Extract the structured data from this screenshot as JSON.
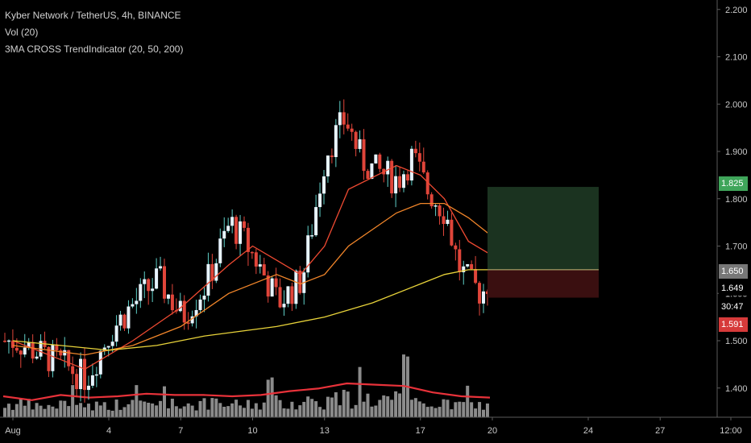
{
  "legend": {
    "symbol": "Kyber Network / TetherUS, 4h, BINANCE",
    "volume": "Vol (20)",
    "indicator": "3MA CROSS TrendIndicator (20, 50, 200)"
  },
  "colors": {
    "up": "#e8f4ff",
    "down": "#e0453a",
    "wick_up": "#5fd0c8",
    "ma20": "#ef4a32",
    "ma50": "#f2862a",
    "ma200": "#e8d33a",
    "volume_bar": "#9a9a9a",
    "volume_ma": "#e8323a",
    "profit_zone": "#1b3320",
    "loss_zone": "#3a0f10",
    "axis_text": "#c8c8c8"
  },
  "price_axis": {
    "ticks": [
      "2.200",
      "2.100",
      "2.000",
      "1.900",
      "1.800",
      "1.700",
      "1.600",
      "1.500",
      "1.400"
    ],
    "badges": {
      "target": "1.825",
      "entry": "1.650",
      "last_price": "1.649",
      "countdown": "30:47",
      "stop": "1.591"
    }
  },
  "time_axis": {
    "labels": [
      "Aug",
      "4",
      "7",
      "10",
      "13",
      "17",
      "20",
      "24",
      "27",
      "12:00"
    ]
  },
  "chart_data": {
    "type": "candlestick",
    "title": "Kyber Network / TetherUS, 4h, BINANCE",
    "ylim": [
      1.34,
      2.22
    ],
    "x_categories": [
      "Aug",
      "4",
      "7",
      "10",
      "13",
      "17",
      "20",
      "24",
      "27",
      "12:00"
    ],
    "series_price_anchors": [
      {
        "day": 0,
        "close": 1.5
      },
      {
        "day": 2,
        "close": 1.45
      },
      {
        "day": 3,
        "close": 1.42
      },
      {
        "day": 4,
        "close": 1.52
      },
      {
        "day": 5,
        "close": 1.58
      },
      {
        "day": 6,
        "close": 1.63
      },
      {
        "day": 7,
        "close": 1.55
      },
      {
        "day": 8,
        "close": 1.62
      },
      {
        "day": 9,
        "close": 1.75
      },
      {
        "day": 9.6,
        "close": 1.71
      },
      {
        "day": 10.2,
        "close": 1.66
      },
      {
        "day": 11,
        "close": 1.58
      },
      {
        "day": 12,
        "close": 1.63
      },
      {
        "day": 13,
        "close": 1.9
      },
      {
        "day": 13.8,
        "close": 1.97
      },
      {
        "day": 14.5,
        "close": 1.88
      },
      {
        "day": 15,
        "close": 1.86
      },
      {
        "day": 16,
        "close": 1.84
      },
      {
        "day": 16.6,
        "close": 1.89
      },
      {
        "day": 17.2,
        "close": 1.82
      },
      {
        "day": 18,
        "close": 1.77
      },
      {
        "day": 18.5,
        "close": 1.66
      },
      {
        "day": 19,
        "close": 1.62
      },
      {
        "day": 19.5,
        "close": 1.6
      },
      {
        "day": 20,
        "close": 1.649
      }
    ],
    "moving_averages": [
      {
        "name": "MA 20",
        "color": "#ef4a32",
        "points": [
          [
            0,
            1.5
          ],
          [
            3,
            1.44
          ],
          [
            5,
            1.5
          ],
          [
            7,
            1.57
          ],
          [
            9,
            1.66
          ],
          [
            10,
            1.7
          ],
          [
            11,
            1.67
          ],
          [
            12,
            1.64
          ],
          [
            13,
            1.7
          ],
          [
            14,
            1.82
          ],
          [
            16,
            1.87
          ],
          [
            17,
            1.85
          ],
          [
            18,
            1.8
          ],
          [
            19,
            1.71
          ],
          [
            20,
            1.68
          ]
        ]
      },
      {
        "name": "MA 50",
        "color": "#f2862a",
        "points": [
          [
            0,
            1.49
          ],
          [
            3,
            1.47
          ],
          [
            5,
            1.49
          ],
          [
            7,
            1.53
          ],
          [
            9,
            1.6
          ],
          [
            11,
            1.64
          ],
          [
            12,
            1.62
          ],
          [
            13,
            1.64
          ],
          [
            14,
            1.7
          ],
          [
            16,
            1.77
          ],
          [
            17,
            1.79
          ],
          [
            18,
            1.79
          ],
          [
            19,
            1.76
          ],
          [
            20,
            1.72
          ]
        ]
      },
      {
        "name": "MA 200",
        "color": "#e8d33a",
        "points": [
          [
            0,
            1.5
          ],
          [
            4,
            1.48
          ],
          [
            6,
            1.49
          ],
          [
            8,
            1.51
          ],
          [
            11,
            1.53
          ],
          [
            13,
            1.55
          ],
          [
            15,
            1.58
          ],
          [
            17,
            1.62
          ],
          [
            18,
            1.64
          ],
          [
            19,
            1.65
          ],
          [
            20,
            1.65
          ]
        ]
      }
    ],
    "volume_ma_levels": [
      0.5,
      0.35,
      0.55,
      0.45,
      0.5,
      0.6,
      0.55,
      0.55,
      0.5,
      0.55,
      0.7,
      0.8,
      1.0,
      0.95,
      0.9,
      0.65,
      0.5,
      0.45
    ],
    "position": {
      "target": 1.825,
      "entry": 1.65,
      "stop": 1.591
    }
  }
}
